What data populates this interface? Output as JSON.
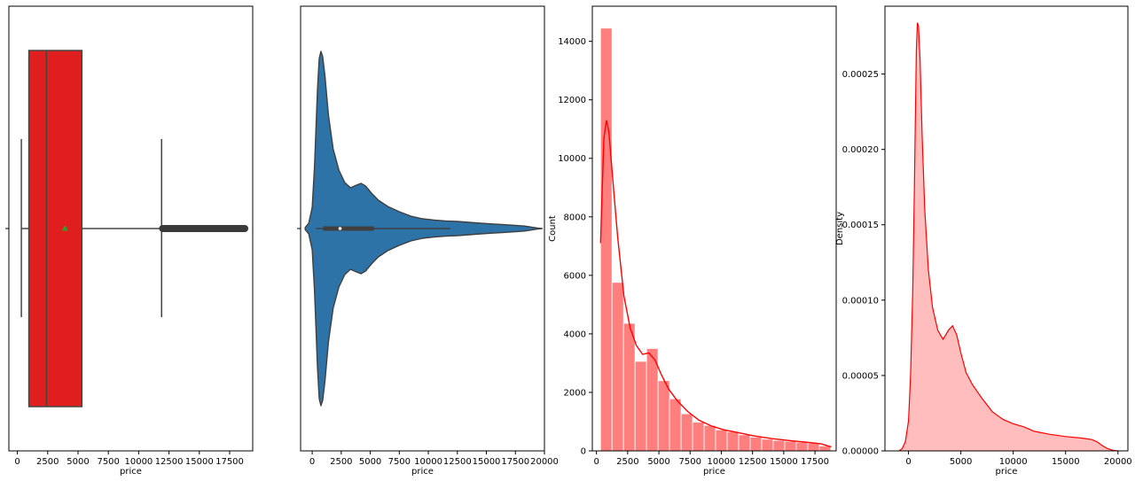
{
  "chart_data": [
    {
      "type": "boxplot",
      "xlabel": "price",
      "xlim": [
        -700,
        19400
      ],
      "xticks": [
        0,
        2500,
        5000,
        7500,
        10000,
        12500,
        15000,
        17500
      ],
      "box": {
        "q1": 950,
        "median": 2400,
        "q3": 5320,
        "mean": 3930,
        "whisker_low": 330,
        "whisker_high": 11890,
        "outliers_from": 11900,
        "outliers_to": 18820
      },
      "box_color": "#e11e1e",
      "mean_marker_color": "#2ca02c"
    },
    {
      "type": "violin",
      "xlabel": "price",
      "xlim": [
        -1000,
        20000
      ],
      "xticks": [
        0,
        2500,
        5000,
        7500,
        10000,
        12500,
        15000,
        17500,
        20000
      ],
      "fill_color": "#2e73a8",
      "stats": {
        "q1": 950,
        "median": 2400,
        "q3": 5320,
        "whisker_low": 330,
        "whisker_high": 11890
      },
      "profile": [
        [
          -600,
          0.006
        ],
        [
          -300,
          0.03
        ],
        [
          0,
          0.12
        ],
        [
          200,
          0.35
        ],
        [
          450,
          0.78
        ],
        [
          600,
          0.96
        ],
        [
          750,
          1.0
        ],
        [
          900,
          0.97
        ],
        [
          1100,
          0.86
        ],
        [
          1400,
          0.64
        ],
        [
          1800,
          0.45
        ],
        [
          2300,
          0.33
        ],
        [
          2800,
          0.26
        ],
        [
          3300,
          0.23
        ],
        [
          3800,
          0.245
        ],
        [
          4200,
          0.255
        ],
        [
          4600,
          0.24
        ],
        [
          5100,
          0.2
        ],
        [
          5700,
          0.16
        ],
        [
          6500,
          0.125
        ],
        [
          7500,
          0.095
        ],
        [
          8500,
          0.07
        ],
        [
          9500,
          0.055
        ],
        [
          10500,
          0.048
        ],
        [
          11500,
          0.043
        ],
        [
          12500,
          0.04
        ],
        [
          13500,
          0.035
        ],
        [
          14500,
          0.03
        ],
        [
          15500,
          0.026
        ],
        [
          16500,
          0.022
        ],
        [
          17500,
          0.018
        ],
        [
          18300,
          0.014
        ],
        [
          18900,
          0.008
        ],
        [
          19400,
          0.003
        ],
        [
          19800,
          0.0
        ]
      ]
    },
    {
      "type": "histogram",
      "xlabel": "price",
      "ylabel": "Count",
      "xlim": [
        -330,
        19200
      ],
      "ylim": [
        0,
        15200
      ],
      "xticks": [
        0,
        2500,
        5000,
        7500,
        10000,
        12500,
        15000,
        17500
      ],
      "yticks": [
        0,
        2000,
        4000,
        6000,
        8000,
        10000,
        12000,
        14000
      ],
      "bin_start": 326,
      "bin_width": 922,
      "counts": [
        14450,
        5760,
        4360,
        3060,
        3500,
        2400,
        1780,
        1270,
        980,
        870,
        720,
        660,
        550,
        470,
        400,
        360,
        330,
        300,
        270,
        170
      ],
      "bar_color": "#ff7f7f",
      "kde_color": "#ff0000",
      "kde_curve": [
        [
          330,
          7100
        ],
        [
          450,
          8800
        ],
        [
          600,
          10700
        ],
        [
          800,
          11300
        ],
        [
          1000,
          10900
        ],
        [
          1300,
          9300
        ],
        [
          1700,
          7300
        ],
        [
          2200,
          5300
        ],
        [
          2700,
          4200
        ],
        [
          3200,
          3600
        ],
        [
          3700,
          3300
        ],
        [
          4200,
          3350
        ],
        [
          4700,
          3100
        ],
        [
          5200,
          2600
        ],
        [
          5800,
          2100
        ],
        [
          6500,
          1700
        ],
        [
          7300,
          1350
        ],
        [
          8200,
          1050
        ],
        [
          9200,
          850
        ],
        [
          10200,
          720
        ],
        [
          11200,
          640
        ],
        [
          12500,
          520
        ],
        [
          14000,
          420
        ],
        [
          15500,
          350
        ],
        [
          17000,
          290
        ],
        [
          18000,
          240
        ],
        [
          18800,
          140
        ]
      ]
    },
    {
      "type": "area",
      "xlabel": "price",
      "ylabel": "Density",
      "xlim": [
        -2250,
        20950
      ],
      "ylim": [
        0,
        0.000295
      ],
      "xticks": [
        0,
        5000,
        10000,
        15000,
        20000
      ],
      "yticks": [
        0,
        5e-05,
        0.0001,
        0.00015,
        0.0002,
        0.00025
      ],
      "ytick_labels": [
        "0.00000",
        "0.00005",
        "0.00010",
        "0.00015",
        "0.00020",
        "0.00025"
      ],
      "fill_color": "#ffbdbd",
      "line_color": "#ff0000",
      "x": [
        -900,
        -600,
        -300,
        0,
        200,
        400,
        550,
        650,
        750,
        850,
        950,
        1100,
        1300,
        1550,
        1900,
        2300,
        2800,
        3300,
        3800,
        4200,
        4600,
        5000,
        5500,
        6100,
        7000,
        8000,
        9000,
        10000,
        11000,
        12000,
        13500,
        15000,
        16500,
        17500,
        18000,
        18500,
        19000,
        19500,
        20000
      ],
      "y": [
        0.0,
        1.5e-06,
        6e-06,
        2e-05,
        5e-05,
        0.000105,
        0.00017,
        0.00022,
        0.000265,
        0.000284,
        0.000282,
        0.00026,
        0.00021,
        0.00016,
        0.00012,
        9.5e-05,
        8e-05,
        7.4e-05,
        8e-05,
        8.3e-05,
        7.7e-05,
        6.5e-05,
        5.2e-05,
        4.4e-05,
        3.5e-05,
        2.6e-05,
        2.1e-05,
        1.8e-05,
        1.6e-05,
        1.3e-05,
        1.1e-05,
        9.5e-06,
        8.5e-06,
        7.5e-06,
        6e-06,
        3.5e-06,
        1.5e-06,
        4e-07,
        0.0
      ]
    }
  ]
}
